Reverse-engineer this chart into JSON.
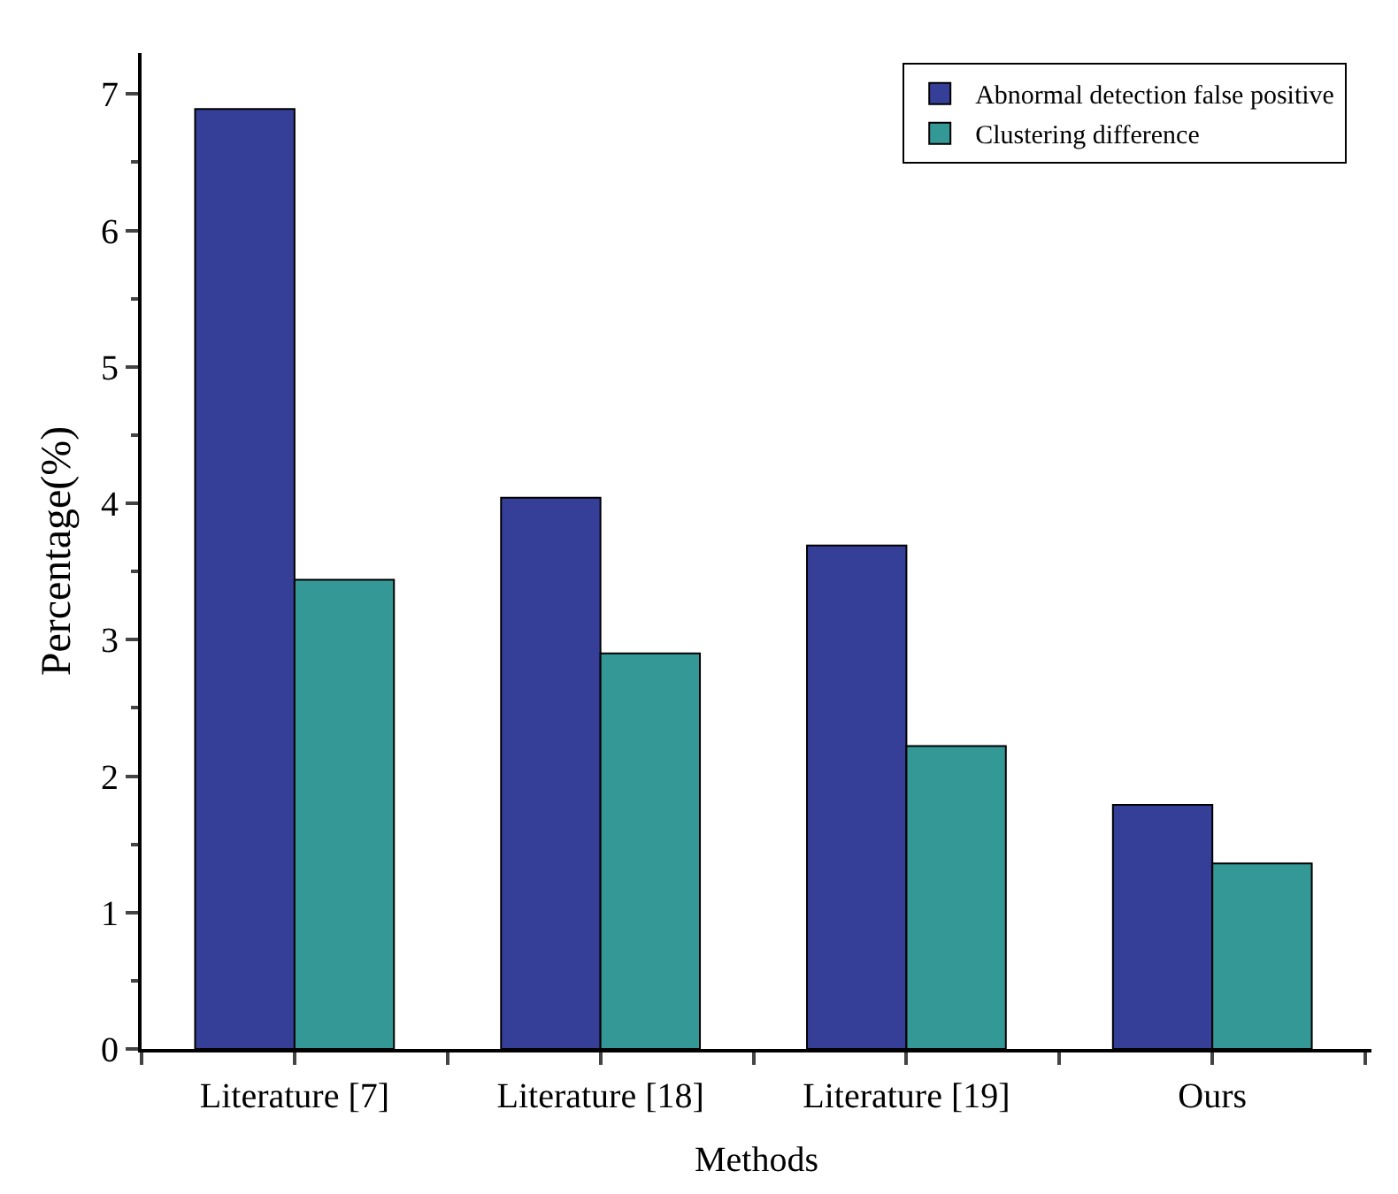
{
  "chart_data": {
    "type": "bar",
    "xlabel": "Methods",
    "ylabel": "Percentage(%)",
    "categories": [
      "Literature [7]",
      "Literature [18]",
      "Literature [19]",
      "Ours"
    ],
    "series": [
      {
        "name": "Abnormal detection false positive",
        "color": "#353f97",
        "values": [
          6.89,
          4.04,
          3.69,
          1.79
        ]
      },
      {
        "name": "Clustering difference",
        "color": "#339896",
        "values": [
          3.44,
          2.9,
          2.22,
          1.36
        ]
      }
    ],
    "ylim": [
      0,
      7.3
    ],
    "yticks": [
      0,
      1,
      2,
      3,
      4,
      5,
      6,
      7
    ],
    "grid": false,
    "legend": "top right"
  }
}
